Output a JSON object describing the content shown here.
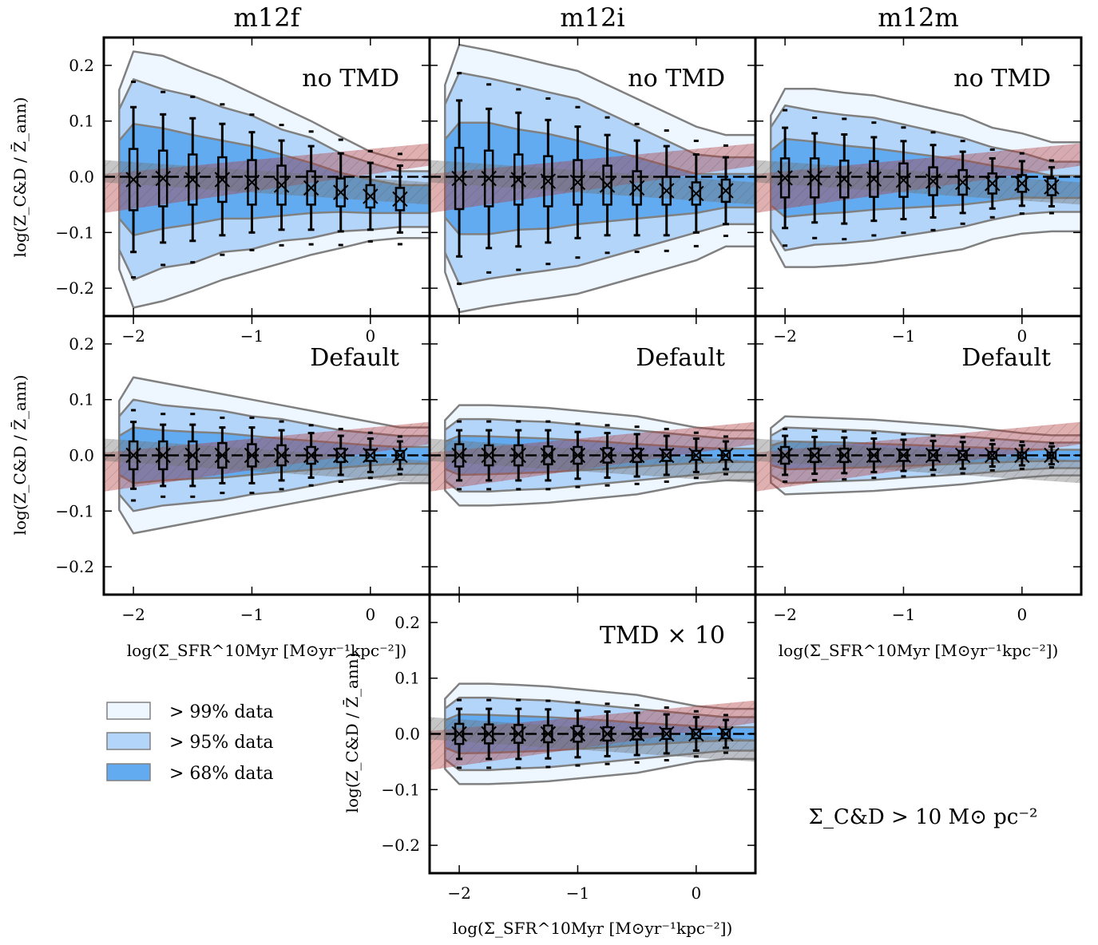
{
  "figure": {
    "column_titles": [
      "m12f",
      "m12i",
      "m12m"
    ],
    "row_annotations": [
      "no TMD",
      "Default",
      "TMD × 10"
    ],
    "x_axis_label": "log(Σ_SFR^10Myr [M⊙yr⁻¹kpc⁻²])",
    "y_axis_label": "log(Z_C&D / Z̄_ann)",
    "condition_text": "Σ_C&D > 10 M⊙ pc⁻²",
    "legend": [
      {
        "label": "> 99% data",
        "color": "#eef6ff"
      },
      {
        "label": "> 95% data",
        "color": "#b3d5fa"
      },
      {
        "label": "> 68% data",
        "color": "#63abf0"
      }
    ],
    "colors": {
      "red_band": "#b23a3a",
      "gray_band": "#707070",
      "contour_line": "#808080"
    }
  },
  "chart_data": [
    {
      "type": "scatter",
      "panel": "m12f no TMD",
      "xlim": [
        -2.25,
        0.5
      ],
      "ylim": [
        -0.25,
        0.25
      ],
      "x": [
        -2.0,
        -1.75,
        -1.5,
        -1.25,
        -1.0,
        -0.75,
        -0.5,
        -0.25,
        0.0,
        0.25
      ],
      "median": [
        -0.005,
        -0.003,
        -0.005,
        -0.005,
        -0.01,
        -0.015,
        -0.02,
        -0.028,
        -0.035,
        -0.04
      ],
      "box_half": [
        0.055,
        0.05,
        0.045,
        0.04,
        0.04,
        0.035,
        0.03,
        0.025,
        0.02,
        0.02
      ],
      "whisker_half": [
        0.13,
        0.115,
        0.11,
        0.1,
        0.09,
        0.08,
        0.075,
        0.07,
        0.06,
        0.06
      ],
      "contour_halfwidth": {
        "p99": [
          0.23,
          0.22,
          0.2,
          0.18,
          0.16,
          0.14,
          0.12,
          0.1,
          0.08,
          0.07
        ],
        "p95": [
          0.18,
          0.16,
          0.15,
          0.13,
          0.12,
          0.1,
          0.09,
          0.07,
          0.06,
          0.05
        ],
        "p68": [
          0.1,
          0.09,
          0.08,
          0.07,
          0.065,
          0.055,
          0.045,
          0.035,
          0.03,
          0.025
        ]
      },
      "ticks_x": [
        "−2",
        "−1",
        "0"
      ],
      "ticks_y": [
        "0.2",
        "0.1",
        "0.0",
        "−0.1",
        "−0.2"
      ]
    },
    {
      "type": "scatter",
      "panel": "m12i no TMD",
      "xlim": [
        -2.25,
        0.5
      ],
      "ylim": [
        -0.25,
        0.25
      ],
      "x": [
        -2.0,
        -1.75,
        -1.5,
        -1.25,
        -1.0,
        -0.75,
        -0.5,
        -0.25,
        0.0,
        0.25
      ],
      "median": [
        -0.003,
        -0.003,
        -0.005,
        -0.008,
        -0.01,
        -0.015,
        -0.02,
        -0.025,
        -0.03,
        -0.025
      ],
      "box_half": [
        0.055,
        0.05,
        0.045,
        0.045,
        0.04,
        0.035,
        0.03,
        0.025,
        0.02,
        0.02
      ],
      "whisker_half": [
        0.14,
        0.125,
        0.12,
        0.11,
        0.1,
        0.09,
        0.085,
        0.08,
        0.07,
        0.06
      ],
      "contour_halfwidth": {
        "p99": [
          0.24,
          0.23,
          0.22,
          0.21,
          0.2,
          0.18,
          0.16,
          0.14,
          0.12,
          0.1
        ],
        "p95": [
          0.19,
          0.18,
          0.17,
          0.16,
          0.15,
          0.13,
          0.11,
          0.09,
          0.07,
          0.06
        ],
        "p68": [
          0.1,
          0.1,
          0.09,
          0.085,
          0.075,
          0.065,
          0.055,
          0.045,
          0.035,
          0.03
        ]
      },
      "ticks_x": [],
      "ticks_y": []
    },
    {
      "type": "scatter",
      "panel": "m12m no TMD",
      "xlim": [
        -2.25,
        0.5
      ],
      "ylim": [
        -0.25,
        0.25
      ],
      "x": [
        -2.0,
        -1.75,
        -1.5,
        -1.25,
        -1.0,
        -0.75,
        -0.5,
        -0.25,
        0.0,
        0.25
      ],
      "median": [
        -0.002,
        -0.002,
        -0.004,
        -0.004,
        -0.006,
        -0.008,
        -0.01,
        -0.012,
        -0.012,
        -0.018
      ],
      "box_half": [
        0.035,
        0.035,
        0.033,
        0.032,
        0.03,
        0.025,
        0.022,
        0.018,
        0.015,
        0.015
      ],
      "whisker_half": [
        0.09,
        0.08,
        0.08,
        0.075,
        0.07,
        0.065,
        0.055,
        0.045,
        0.04,
        0.035
      ],
      "contour_halfwidth": {
        "p99": [
          0.16,
          0.16,
          0.155,
          0.15,
          0.14,
          0.13,
          0.12,
          0.1,
          0.09,
          0.08
        ],
        "p95": [
          0.13,
          0.12,
          0.115,
          0.11,
          0.1,
          0.09,
          0.08,
          0.065,
          0.055,
          0.045
        ],
        "p68": [
          0.07,
          0.065,
          0.06,
          0.055,
          0.05,
          0.045,
          0.04,
          0.032,
          0.025,
          0.02
        ]
      },
      "ticks_x": [
        "−2",
        "−1",
        "0"
      ],
      "ticks_y": []
    },
    {
      "type": "scatter",
      "panel": "m12f Default",
      "xlim": [
        -2.25,
        0.5
      ],
      "ylim": [
        -0.25,
        0.25
      ],
      "x": [
        -2.0,
        -1.75,
        -1.5,
        -1.25,
        -1.0,
        -0.75,
        -0.5,
        -0.25,
        0.0,
        0.25
      ],
      "median": [
        0.0,
        0.0,
        0.0,
        0.0,
        0.0,
        0.0,
        0.0,
        0.0,
        0.0,
        0.0
      ],
      "box_half": [
        0.025,
        0.025,
        0.025,
        0.022,
        0.02,
        0.018,
        0.015,
        0.012,
        0.01,
        0.008
      ],
      "whisker_half": [
        0.06,
        0.055,
        0.055,
        0.05,
        0.05,
        0.045,
        0.04,
        0.035,
        0.03,
        0.025
      ],
      "contour_halfwidth": {
        "p99": [
          0.14,
          0.13,
          0.12,
          0.11,
          0.1,
          0.09,
          0.08,
          0.07,
          0.06,
          0.05
        ],
        "p95": [
          0.1,
          0.09,
          0.085,
          0.08,
          0.07,
          0.065,
          0.055,
          0.045,
          0.04,
          0.035
        ],
        "p68": [
          0.05,
          0.045,
          0.042,
          0.04,
          0.035,
          0.03,
          0.026,
          0.022,
          0.018,
          0.015
        ]
      },
      "ticks_x": [
        "−2",
        "−1",
        "0"
      ],
      "ticks_y": [
        "0.2",
        "0.1",
        "0.0",
        "−0.1",
        "−0.2"
      ]
    },
    {
      "type": "scatter",
      "panel": "m12i Default",
      "xlim": [
        -2.25,
        0.5
      ],
      "ylim": [
        -0.25,
        0.25
      ],
      "x": [
        -2.0,
        -1.75,
        -1.5,
        -1.25,
        -1.0,
        -0.75,
        -0.5,
        -0.25,
        0.0,
        0.25
      ],
      "median": [
        0.0,
        0.0,
        0.0,
        0.0,
        0.0,
        0.0,
        0.0,
        0.0,
        0.0,
        0.0
      ],
      "box_half": [
        0.02,
        0.018,
        0.018,
        0.016,
        0.015,
        0.013,
        0.012,
        0.01,
        0.008,
        0.008
      ],
      "whisker_half": [
        0.045,
        0.045,
        0.045,
        0.045,
        0.042,
        0.04,
        0.038,
        0.035,
        0.03,
        0.025
      ],
      "contour_halfwidth": {
        "p99": [
          0.09,
          0.09,
          0.088,
          0.085,
          0.08,
          0.075,
          0.07,
          0.06,
          0.05,
          0.045
        ],
        "p95": [
          0.065,
          0.065,
          0.062,
          0.06,
          0.055,
          0.05,
          0.045,
          0.04,
          0.035,
          0.03
        ],
        "p68": [
          0.035,
          0.034,
          0.032,
          0.03,
          0.027,
          0.024,
          0.02,
          0.017,
          0.014,
          0.012
        ]
      },
      "ticks_x": [],
      "ticks_y": []
    },
    {
      "type": "scatter",
      "panel": "m12m Default",
      "xlim": [
        -2.25,
        0.5
      ],
      "ylim": [
        -0.25,
        0.25
      ],
      "x": [
        -2.0,
        -1.75,
        -1.5,
        -1.25,
        -1.0,
        -0.75,
        -0.5,
        -0.25,
        0.0,
        0.25
      ],
      "median": [
        0.0,
        0.0,
        0.0,
        0.0,
        0.0,
        0.0,
        0.0,
        0.0,
        0.0,
        0.0
      ],
      "box_half": [
        0.015,
        0.012,
        0.012,
        0.011,
        0.01,
        0.009,
        0.008,
        0.006,
        0.005,
        0.005
      ],
      "whisker_half": [
        0.035,
        0.033,
        0.032,
        0.03,
        0.028,
        0.026,
        0.024,
        0.02,
        0.018,
        0.016
      ],
      "contour_halfwidth": {
        "p99": [
          0.07,
          0.068,
          0.066,
          0.064,
          0.06,
          0.056,
          0.052,
          0.046,
          0.04,
          0.036
        ],
        "p95": [
          0.05,
          0.048,
          0.046,
          0.044,
          0.04,
          0.037,
          0.034,
          0.03,
          0.026,
          0.023
        ],
        "p68": [
          0.025,
          0.024,
          0.023,
          0.021,
          0.019,
          0.017,
          0.015,
          0.013,
          0.011,
          0.01
        ]
      },
      "ticks_x": [
        "−2",
        "−1",
        "0"
      ],
      "ticks_y": []
    },
    {
      "type": "scatter",
      "panel": "m12i TMD × 10",
      "xlim": [
        -2.25,
        0.5
      ],
      "ylim": [
        -0.25,
        0.25
      ],
      "x": [
        -2.0,
        -1.75,
        -1.5,
        -1.25,
        -1.0,
        -0.75,
        -0.5,
        -0.25,
        0.0,
        0.25
      ],
      "median": [
        0.0,
        0.0,
        0.0,
        0.0,
        0.0,
        0.0,
        0.0,
        0.0,
        0.0,
        0.0
      ],
      "box_half": [
        0.018,
        0.017,
        0.016,
        0.015,
        0.014,
        0.012,
        0.01,
        0.009,
        0.008,
        0.008
      ],
      "whisker_half": [
        0.045,
        0.045,
        0.045,
        0.044,
        0.042,
        0.04,
        0.038,
        0.035,
        0.03,
        0.025
      ],
      "contour_halfwidth": {
        "p99": [
          0.09,
          0.09,
          0.088,
          0.085,
          0.08,
          0.075,
          0.07,
          0.06,
          0.05,
          0.045
        ],
        "p95": [
          0.065,
          0.065,
          0.062,
          0.06,
          0.055,
          0.05,
          0.045,
          0.04,
          0.035,
          0.03
        ],
        "p68": [
          0.035,
          0.034,
          0.032,
          0.03,
          0.027,
          0.024,
          0.02,
          0.017,
          0.014,
          0.012
        ]
      },
      "ticks_x": [
        "−2",
        "−1",
        "0"
      ],
      "ticks_y": [
        "0.2",
        "0.1",
        "0.0",
        "−0.1",
        "−0.2"
      ]
    }
  ]
}
